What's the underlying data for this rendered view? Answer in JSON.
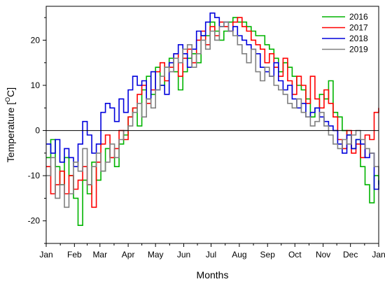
{
  "chart_data": {
    "type": "line",
    "title": "",
    "xlabel": "Months",
    "ylabel": "Temperature [°C]",
    "ylabel_parts": {
      "pre": "Temperature [",
      "sup": "O",
      "post": "C]"
    },
    "x_tick_labels": [
      "Jan",
      "Feb",
      "Mar",
      "Apr",
      "May",
      "Jun",
      "Jul",
      "Aug",
      "Sep",
      "Oct",
      "Nov",
      "Dec",
      "Jan"
    ],
    "x_tick_day_of_year": [
      1,
      32,
      60,
      91,
      121,
      152,
      182,
      213,
      244,
      274,
      305,
      335,
      366
    ],
    "xlim": [
      1,
      366
    ],
    "y_ticks": [
      -20,
      -10,
      0,
      10,
      20
    ],
    "ylim": [
      -25,
      27.5
    ],
    "reference_line_y": 0,
    "grid": false,
    "legend_position": "top-right",
    "x_unit": "day of year",
    "series": [
      {
        "name": "2016",
        "color": "#00b400",
        "x": [
          1,
          6,
          11,
          16,
          21,
          26,
          31,
          36,
          41,
          46,
          51,
          56,
          61,
          66,
          71,
          76,
          81,
          86,
          91,
          96,
          101,
          106,
          111,
          116,
          121,
          126,
          131,
          136,
          141,
          146,
          151,
          156,
          161,
          166,
          171,
          176,
          181,
          186,
          191,
          196,
          201,
          206,
          211,
          216,
          221,
          226,
          231,
          236,
          241,
          246,
          251,
          256,
          261,
          266,
          271,
          276,
          281,
          286,
          291,
          296,
          301,
          306,
          311,
          316,
          321,
          326,
          331,
          336,
          341,
          346,
          351,
          356,
          361,
          366
        ],
        "y": [
          -6,
          -2,
          -8,
          -12,
          -6,
          -10,
          -15,
          -21,
          -11,
          -14,
          -7,
          -11,
          -9,
          -4,
          -6,
          -8,
          -3,
          -1,
          3,
          5,
          1,
          9,
          12,
          8,
          14,
          10,
          14,
          16,
          13,
          9,
          13,
          16,
          17,
          15,
          21,
          21,
          24,
          22,
          20,
          22,
          24,
          25,
          24,
          24,
          23,
          22,
          21,
          21,
          19,
          18,
          16,
          13,
          15,
          14,
          12,
          10,
          9,
          7,
          3,
          5,
          8,
          7,
          11,
          4,
          3,
          0,
          -1,
          -4,
          -2,
          -8,
          -12,
          -16,
          -10,
          -12
        ]
      },
      {
        "name": "2017",
        "color": "#ff0000",
        "x": [
          1,
          6,
          11,
          16,
          21,
          26,
          31,
          36,
          41,
          46,
          51,
          56,
          61,
          66,
          71,
          76,
          81,
          86,
          91,
          96,
          101,
          106,
          111,
          116,
          121,
          126,
          131,
          136,
          141,
          146,
          151,
          156,
          161,
          166,
          171,
          176,
          181,
          186,
          191,
          196,
          201,
          206,
          211,
          216,
          221,
          226,
          231,
          236,
          241,
          246,
          251,
          256,
          261,
          266,
          271,
          276,
          281,
          286,
          291,
          296,
          301,
          306,
          311,
          316,
          321,
          326,
          331,
          336,
          341,
          346,
          351,
          356,
          361,
          366
        ],
        "y": [
          -8,
          -14,
          -12,
          -9,
          -14,
          -10,
          -13,
          -11,
          -8,
          -12,
          -17,
          -7,
          -3,
          -1,
          -6,
          -4,
          0,
          -2,
          3,
          5,
          8,
          10,
          6,
          9,
          13,
          15,
          11,
          14,
          17,
          12,
          16,
          18,
          15,
          20,
          22,
          19,
          23,
          21,
          24,
          23,
          22,
          24,
          25,
          23,
          22,
          20,
          19,
          18,
          15,
          17,
          14,
          12,
          16,
          11,
          8,
          12,
          10,
          6,
          12,
          7,
          5,
          9,
          6,
          3,
          -2,
          -4,
          0,
          -5,
          -3,
          -6,
          -1,
          -2,
          4,
          5
        ]
      },
      {
        "name": "2018",
        "color": "#0000dc",
        "x": [
          1,
          6,
          11,
          16,
          21,
          26,
          31,
          36,
          41,
          46,
          51,
          56,
          61,
          66,
          71,
          76,
          81,
          86,
          91,
          96,
          101,
          106,
          111,
          116,
          121,
          126,
          131,
          136,
          141,
          146,
          151,
          156,
          161,
          166,
          171,
          176,
          181,
          186,
          191,
          196,
          201,
          206,
          211,
          216,
          221,
          226,
          231,
          236,
          241,
          246,
          251,
          256,
          261,
          266,
          271,
          276,
          281,
          286,
          291,
          296,
          301,
          306,
          311,
          316,
          321,
          326,
          331,
          336,
          341,
          346,
          351,
          356,
          361,
          366
        ],
        "y": [
          -3,
          -5,
          -2,
          -7,
          -4,
          -6,
          -8,
          -3,
          2,
          -1,
          -5,
          -3,
          4,
          6,
          5,
          2,
          7,
          4,
          9,
          12,
          10,
          11,
          7,
          13,
          9,
          10,
          8,
          15,
          17,
          19,
          17,
          14,
          18,
          22,
          21,
          24,
          26,
          25,
          23,
          24,
          22,
          23,
          21,
          20,
          19,
          18,
          17,
          14,
          13,
          12,
          15,
          11,
          9,
          10,
          7,
          5,
          6,
          3,
          4,
          5,
          3,
          2,
          1,
          0,
          -3,
          -5,
          -1,
          -4,
          -2,
          -3,
          -6,
          -5,
          -13,
          -11
        ]
      },
      {
        "name": "2019",
        "color": "#808080",
        "x": [
          1,
          6,
          11,
          16,
          21,
          26,
          31,
          36,
          41,
          46,
          51,
          56,
          61,
          66,
          71,
          76,
          81,
          86,
          91,
          96,
          101,
          106,
          111,
          116,
          121,
          126,
          131,
          136,
          141,
          146,
          151,
          156,
          161,
          166,
          171,
          176,
          181,
          186,
          191,
          196,
          201,
          206,
          211,
          216,
          221,
          226,
          231,
          236,
          241,
          246,
          251,
          256,
          261,
          266,
          271,
          276,
          281,
          286,
          291,
          296,
          301,
          306,
          311,
          316,
          321,
          326,
          331,
          336,
          341,
          346,
          351,
          356,
          361,
          366
        ],
        "y": [
          -10,
          -6,
          -15,
          -12,
          -17,
          -14,
          -7,
          -9,
          -4,
          -12,
          -8,
          -5,
          -9,
          -7,
          -3,
          -6,
          -2,
          0,
          1,
          4,
          6,
          3,
          7,
          5,
          9,
          12,
          14,
          13,
          16,
          15,
          18,
          19,
          14,
          17,
          20,
          18,
          22,
          20,
          23,
          24,
          22,
          21,
          19,
          17,
          15,
          18,
          13,
          11,
          14,
          12,
          10,
          9,
          8,
          6,
          5,
          7,
          4,
          3,
          1,
          2,
          4,
          1,
          -1,
          -3,
          -4,
          -2,
          -3,
          -1,
          0,
          -2,
          -4,
          -5,
          -8,
          -10
        ]
      }
    ]
  }
}
